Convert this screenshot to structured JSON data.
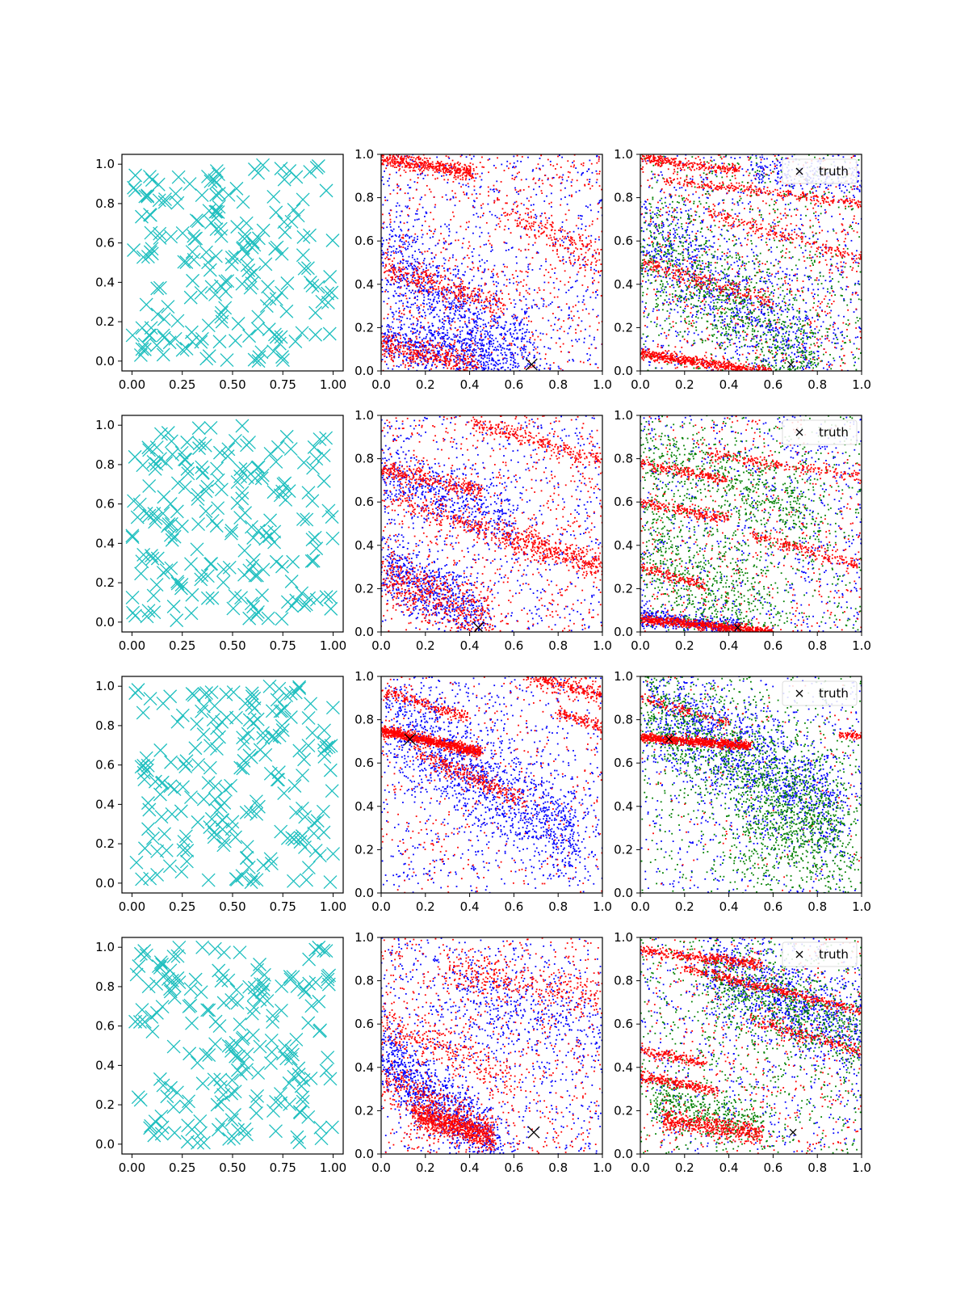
{
  "figure": {
    "rows": 4,
    "columns": 3
  },
  "colors": {
    "samples": "#1fbfbf",
    "blue": "#0000ff",
    "red": "#ff0000",
    "green": "#008000",
    "truth": "#000000"
  },
  "chart_data": [
    {
      "type": "scatter",
      "row": 1,
      "col": 1,
      "marker": "x",
      "color": "cyan",
      "seed": 11,
      "n": 200,
      "xlim": [
        -0.05,
        1.05
      ],
      "ylim": [
        -0.05,
        1.05
      ],
      "xticks": [
        "0.00",
        "0.25",
        "0.50",
        "0.75",
        "1.00"
      ],
      "yticks": [
        "0.0",
        "0.2",
        "0.4",
        "0.6",
        "0.8",
        "1.0"
      ],
      "title": "",
      "xlabel": "",
      "ylabel": ""
    },
    {
      "type": "scatter",
      "row": 1,
      "col": 2,
      "marker": "dot",
      "series_colors": [
        "blue",
        "red"
      ],
      "truth": [
        0.68,
        0.03
      ],
      "xlim": [
        0,
        1
      ],
      "ylim": [
        0,
        1
      ],
      "xticks": [
        "0.0",
        "0.2",
        "0.4",
        "0.6",
        "0.8",
        "1.0"
      ],
      "yticks": [
        "0.0",
        "0.2",
        "0.4",
        "0.6",
        "0.8",
        "1.0"
      ],
      "bands": [
        {
          "color": "red",
          "x0": 0.0,
          "y0": 0.98,
          "slope": -0.15,
          "len": 0.42,
          "w": 0.018,
          "n": 420
        },
        {
          "color": "red",
          "x0": 0.0,
          "y0": 0.48,
          "slope": -0.33,
          "len": 0.55,
          "w": 0.03,
          "n": 320
        },
        {
          "color": "red",
          "x0": 0.0,
          "y0": 0.12,
          "slope": -0.22,
          "len": 0.45,
          "w": 0.035,
          "n": 360
        },
        {
          "color": "red",
          "x0": 0.55,
          "y0": 0.75,
          "slope": -0.55,
          "len": 0.45,
          "w": 0.04,
          "n": 200
        },
        {
          "color": "blue",
          "x0": 0.0,
          "y0": 0.55,
          "slope": -0.8,
          "len": 0.7,
          "w": 0.12,
          "n": 900
        },
        {
          "color": "blue",
          "x0": 0.0,
          "y0": 0.15,
          "slope": -0.2,
          "len": 0.5,
          "w": 0.06,
          "n": 500
        }
      ],
      "background": [
        {
          "color": "blue",
          "n": 700
        },
        {
          "color": "red",
          "n": 700
        }
      ]
    },
    {
      "type": "scatter",
      "row": 1,
      "col": 3,
      "marker": "dot",
      "series_colors": [
        "blue",
        "green",
        "red"
      ],
      "truth": [
        0.68,
        0.03
      ],
      "legend": {
        "label": "truth",
        "position": "top-right"
      },
      "xlim": [
        0,
        1
      ],
      "ylim": [
        0,
        1
      ],
      "xticks": [
        "0.0",
        "0.2",
        "0.4",
        "0.6",
        "0.8",
        "1.0"
      ],
      "yticks": [
        "0.0",
        "0.2",
        "0.4",
        "0.6",
        "0.8",
        "1.0"
      ],
      "bands": [
        {
          "color": "red",
          "x0": 0.0,
          "y0": 0.08,
          "slope": -0.15,
          "len": 0.6,
          "w": 0.012,
          "n": 600
        },
        {
          "color": "red",
          "x0": 0.0,
          "y0": 0.98,
          "slope": -0.12,
          "len": 0.45,
          "w": 0.012,
          "n": 250
        },
        {
          "color": "red",
          "x0": 0.1,
          "y0": 0.88,
          "slope": -0.12,
          "len": 0.9,
          "w": 0.01,
          "n": 250
        },
        {
          "color": "red",
          "x0": 0.0,
          "y0": 0.5,
          "slope": -0.3,
          "len": 0.6,
          "w": 0.02,
          "n": 250
        },
        {
          "color": "red",
          "x0": 0.3,
          "y0": 0.73,
          "slope": -0.3,
          "len": 0.7,
          "w": 0.015,
          "n": 200
        },
        {
          "color": "blue",
          "x0": 0.0,
          "y0": 0.65,
          "slope": -0.75,
          "len": 0.8,
          "w": 0.12,
          "n": 700
        },
        {
          "color": "green",
          "x0": 0.0,
          "y0": 0.6,
          "slope": -0.7,
          "len": 0.8,
          "w": 0.14,
          "n": 800
        },
        {
          "color": "blue",
          "x0": 0.5,
          "y0": 0.93,
          "slope": -0.1,
          "len": 0.5,
          "w": 0.04,
          "n": 200
        }
      ],
      "background": [
        {
          "color": "blue",
          "n": 700
        },
        {
          "color": "red",
          "n": 700
        },
        {
          "color": "green",
          "n": 600
        }
      ]
    },
    {
      "type": "scatter",
      "row": 2,
      "col": 1,
      "marker": "x",
      "color": "cyan",
      "seed": 22,
      "n": 200,
      "xlim": [
        -0.05,
        1.05
      ],
      "ylim": [
        -0.05,
        1.05
      ],
      "xticks": [
        "0.00",
        "0.25",
        "0.50",
        "0.75",
        "1.00"
      ],
      "yticks": [
        "0.0",
        "0.2",
        "0.4",
        "0.6",
        "0.8",
        "1.0"
      ],
      "title": "",
      "xlabel": "",
      "ylabel": ""
    },
    {
      "type": "scatter",
      "row": 2,
      "col": 2,
      "marker": "dot",
      "series_colors": [
        "blue",
        "red"
      ],
      "truth": [
        0.44,
        0.02
      ],
      "xlim": [
        0,
        1
      ],
      "ylim": [
        0,
        1
      ],
      "xticks": [
        "0.0",
        "0.2",
        "0.4",
        "0.6",
        "0.8",
        "1.0"
      ],
      "yticks": [
        "0.0",
        "0.2",
        "0.4",
        "0.6",
        "0.8",
        "1.0"
      ],
      "bands": [
        {
          "color": "red",
          "x0": 0.0,
          "y0": 0.75,
          "slope": -0.22,
          "len": 0.45,
          "w": 0.02,
          "n": 300
        },
        {
          "color": "red",
          "x0": 0.05,
          "y0": 0.62,
          "slope": -0.35,
          "len": 0.95,
          "w": 0.03,
          "n": 400
        },
        {
          "color": "red",
          "x0": 0.0,
          "y0": 0.27,
          "slope": -0.45,
          "len": 0.5,
          "w": 0.07,
          "n": 500
        },
        {
          "color": "red",
          "x0": 0.4,
          "y0": 0.97,
          "slope": -0.3,
          "len": 0.6,
          "w": 0.02,
          "n": 250
        },
        {
          "color": "red",
          "x0": 0.55,
          "y0": 0.45,
          "slope": -0.3,
          "len": 0.45,
          "w": 0.03,
          "n": 200
        },
        {
          "color": "blue",
          "x0": 0.0,
          "y0": 0.3,
          "slope": -0.5,
          "len": 0.45,
          "w": 0.08,
          "n": 600
        },
        {
          "color": "blue",
          "x0": 0.0,
          "y0": 0.72,
          "slope": -0.35,
          "len": 0.6,
          "w": 0.08,
          "n": 500
        }
      ],
      "background": [
        {
          "color": "blue",
          "n": 600
        },
        {
          "color": "red",
          "n": 700
        }
      ]
    },
    {
      "type": "scatter",
      "row": 2,
      "col": 3,
      "marker": "dot",
      "series_colors": [
        "blue",
        "green",
        "red"
      ],
      "truth": [
        0.44,
        0.02
      ],
      "legend": {
        "label": "truth",
        "position": "top-right"
      },
      "xlim": [
        0,
        1
      ],
      "ylim": [
        0,
        1
      ],
      "xticks": [
        "0.0",
        "0.2",
        "0.4",
        "0.6",
        "0.8",
        "1.0"
      ],
      "yticks": [
        "0.0",
        "0.2",
        "0.4",
        "0.6",
        "0.8",
        "1.0"
      ],
      "bands": [
        {
          "color": "red",
          "x0": 0.0,
          "y0": 0.06,
          "slope": -0.1,
          "len": 0.6,
          "w": 0.01,
          "n": 700
        },
        {
          "color": "blue",
          "x0": 0.0,
          "y0": 0.07,
          "slope": -0.12,
          "len": 0.45,
          "w": 0.02,
          "n": 400
        },
        {
          "color": "red",
          "x0": 0.0,
          "y0": 0.78,
          "slope": -0.2,
          "len": 0.4,
          "w": 0.012,
          "n": 200
        },
        {
          "color": "red",
          "x0": 0.0,
          "y0": 0.6,
          "slope": -0.2,
          "len": 0.4,
          "w": 0.012,
          "n": 200
        },
        {
          "color": "red",
          "x0": 0.0,
          "y0": 0.3,
          "slope": -0.3,
          "len": 0.3,
          "w": 0.012,
          "n": 150
        },
        {
          "color": "red",
          "x0": 0.3,
          "y0": 0.82,
          "slope": -0.15,
          "len": 0.7,
          "w": 0.012,
          "n": 200
        },
        {
          "color": "red",
          "x0": 0.5,
          "y0": 0.45,
          "slope": -0.3,
          "len": 0.5,
          "w": 0.015,
          "n": 200
        },
        {
          "color": "green",
          "x0": 0.0,
          "y0": 0.4,
          "slope": -0.6,
          "len": 0.6,
          "w": 0.15,
          "n": 600
        },
        {
          "color": "green",
          "x0": 0.0,
          "y0": 0.85,
          "slope": -0.4,
          "len": 0.8,
          "w": 0.1,
          "n": 500
        }
      ],
      "background": [
        {
          "color": "blue",
          "n": 700
        },
        {
          "color": "red",
          "n": 500
        },
        {
          "color": "green",
          "n": 600
        }
      ]
    },
    {
      "type": "scatter",
      "row": 3,
      "col": 1,
      "marker": "x",
      "color": "cyan",
      "seed": 33,
      "n": 200,
      "xlim": [
        -0.05,
        1.05
      ],
      "ylim": [
        -0.05,
        1.05
      ],
      "xticks": [
        "0.00",
        "0.25",
        "0.50",
        "0.75",
        "1.00"
      ],
      "yticks": [
        "0.0",
        "0.2",
        "0.4",
        "0.6",
        "0.8",
        "1.0"
      ],
      "title": "",
      "xlabel": "",
      "ylabel": ""
    },
    {
      "type": "scatter",
      "row": 3,
      "col": 2,
      "marker": "dot",
      "series_colors": [
        "blue",
        "red"
      ],
      "truth": [
        0.13,
        0.71
      ],
      "xlim": [
        0,
        1
      ],
      "ylim": [
        0,
        1
      ],
      "xticks": [
        "0.0",
        "0.2",
        "0.4",
        "0.6",
        "0.8",
        "1.0"
      ],
      "yticks": [
        "0.0",
        "0.2",
        "0.4",
        "0.6",
        "0.8",
        "1.0"
      ],
      "bands": [
        {
          "color": "red",
          "x0": 0.0,
          "y0": 0.75,
          "slope": -0.22,
          "len": 0.45,
          "w": 0.012,
          "n": 900
        },
        {
          "color": "red",
          "x0": 0.0,
          "y0": 0.93,
          "slope": -0.3,
          "len": 0.4,
          "w": 0.015,
          "n": 200
        },
        {
          "color": "red",
          "x0": 0.15,
          "y0": 0.65,
          "slope": -0.45,
          "len": 0.5,
          "w": 0.025,
          "n": 300
        },
        {
          "color": "red",
          "x0": 0.65,
          "y0": 1.0,
          "slope": -0.25,
          "len": 0.35,
          "w": 0.02,
          "n": 250
        },
        {
          "color": "red",
          "x0": 0.8,
          "y0": 0.83,
          "slope": -0.3,
          "len": 0.2,
          "w": 0.015,
          "n": 120
        },
        {
          "color": "blue",
          "x0": 0.05,
          "y0": 0.78,
          "slope": -0.65,
          "len": 0.85,
          "w": 0.12,
          "n": 1200
        }
      ],
      "background": [
        {
          "color": "blue",
          "n": 700
        },
        {
          "color": "red",
          "n": 400
        }
      ]
    },
    {
      "type": "scatter",
      "row": 3,
      "col": 3,
      "marker": "dot",
      "series_colors": [
        "blue",
        "green",
        "red"
      ],
      "truth": [
        0.13,
        0.71
      ],
      "legend": {
        "label": "truth",
        "position": "top-right"
      },
      "xlim": [
        0,
        1
      ],
      "ylim": [
        0,
        1
      ],
      "xticks": [
        "0.0",
        "0.2",
        "0.4",
        "0.6",
        "0.8",
        "1.0"
      ],
      "yticks": [
        "0.0",
        "0.2",
        "0.4",
        "0.6",
        "0.8",
        "1.0"
      ],
      "bands": [
        {
          "color": "red",
          "x0": 0.0,
          "y0": 0.72,
          "slope": -0.08,
          "len": 0.5,
          "w": 0.01,
          "n": 800
        },
        {
          "color": "red",
          "x0": 0.9,
          "y0": 0.73,
          "slope": -0.05,
          "len": 0.1,
          "w": 0.008,
          "n": 60
        },
        {
          "color": "red",
          "x0": 0.0,
          "y0": 0.9,
          "slope": -0.3,
          "len": 0.4,
          "w": 0.012,
          "n": 120
        },
        {
          "color": "blue",
          "x0": 0.05,
          "y0": 0.85,
          "slope": -0.55,
          "len": 0.85,
          "w": 0.12,
          "n": 1100
        },
        {
          "color": "green",
          "x0": 0.05,
          "y0": 0.82,
          "slope": -0.55,
          "len": 0.85,
          "w": 0.13,
          "n": 1100
        },
        {
          "color": "green",
          "x0": 0.45,
          "y0": 0.3,
          "slope": -0.2,
          "len": 0.5,
          "w": 0.12,
          "n": 400
        }
      ],
      "background": [
        {
          "color": "blue",
          "n": 600
        },
        {
          "color": "green",
          "n": 600
        },
        {
          "color": "red",
          "n": 150
        }
      ]
    },
    {
      "type": "scatter",
      "row": 4,
      "col": 1,
      "marker": "x",
      "color": "cyan",
      "seed": 44,
      "n": 200,
      "xlim": [
        -0.05,
        1.05
      ],
      "ylim": [
        -0.05,
        1.05
      ],
      "xticks": [
        "0.00",
        "0.25",
        "0.50",
        "0.75",
        "1.00"
      ],
      "yticks": [
        "0.0",
        "0.2",
        "0.4",
        "0.6",
        "0.8",
        "1.0"
      ],
      "title": "",
      "xlabel": "",
      "ylabel": ""
    },
    {
      "type": "scatter",
      "row": 4,
      "col": 2,
      "marker": "dot",
      "series_colors": [
        "blue",
        "red"
      ],
      "truth": [
        0.69,
        0.1
      ],
      "xlim": [
        0,
        1
      ],
      "ylim": [
        0,
        1
      ],
      "xticks": [
        "0.0",
        "0.2",
        "0.4",
        "0.6",
        "0.8",
        "1.0"
      ],
      "yticks": [
        "0.0",
        "0.2",
        "0.4",
        "0.6",
        "0.8",
        "1.0"
      ],
      "bands": [
        {
          "color": "red",
          "x0": 0.15,
          "y0": 0.18,
          "slope": -0.3,
          "len": 0.35,
          "w": 0.03,
          "n": 700
        },
        {
          "color": "red",
          "x0": 0.0,
          "y0": 0.35,
          "slope": -0.5,
          "len": 0.5,
          "w": 0.05,
          "n": 350
        },
        {
          "color": "red",
          "x0": 0.3,
          "y0": 0.85,
          "slope": -0.2,
          "len": 0.7,
          "w": 0.05,
          "n": 300
        },
        {
          "color": "red",
          "x0": 0.0,
          "y0": 0.6,
          "slope": -0.4,
          "len": 0.6,
          "w": 0.05,
          "n": 250
        },
        {
          "color": "blue",
          "x0": 0.0,
          "y0": 0.45,
          "slope": -0.8,
          "len": 0.55,
          "w": 0.08,
          "n": 900
        },
        {
          "color": "blue",
          "x0": 0.3,
          "y0": 0.75,
          "slope": -0.3,
          "len": 0.7,
          "w": 0.1,
          "n": 300
        }
      ],
      "background": [
        {
          "color": "blue",
          "n": 800
        },
        {
          "color": "red",
          "n": 700
        }
      ]
    },
    {
      "type": "scatter",
      "row": 4,
      "col": 3,
      "marker": "dot",
      "series_colors": [
        "blue",
        "green",
        "red"
      ],
      "truth": [
        0.69,
        0.1
      ],
      "legend": {
        "label": "truth",
        "position": "top-right"
      },
      "xlim": [
        0,
        1
      ],
      "ylim": [
        0,
        1
      ],
      "xticks": [
        "0.0",
        "0.2",
        "0.4",
        "0.6",
        "0.8",
        "1.0"
      ],
      "yticks": [
        "0.0",
        "0.2",
        "0.4",
        "0.6",
        "0.8",
        "1.0"
      ],
      "bands": [
        {
          "color": "red",
          "x0": 0.0,
          "y0": 0.94,
          "slope": -0.12,
          "len": 0.55,
          "w": 0.012,
          "n": 350
        },
        {
          "color": "red",
          "x0": 0.2,
          "y0": 0.86,
          "slope": -0.25,
          "len": 0.8,
          "w": 0.012,
          "n": 400
        },
        {
          "color": "red",
          "x0": 0.0,
          "y0": 0.36,
          "slope": -0.2,
          "len": 0.35,
          "w": 0.012,
          "n": 250
        },
        {
          "color": "red",
          "x0": 0.0,
          "y0": 0.48,
          "slope": -0.2,
          "len": 0.3,
          "w": 0.012,
          "n": 150
        },
        {
          "color": "red",
          "x0": 0.1,
          "y0": 0.16,
          "slope": -0.15,
          "len": 0.45,
          "w": 0.025,
          "n": 500
        },
        {
          "color": "red",
          "x0": 0.5,
          "y0": 0.62,
          "slope": -0.3,
          "len": 0.5,
          "w": 0.015,
          "n": 200
        },
        {
          "color": "blue",
          "x0": 0.3,
          "y0": 0.85,
          "slope": -0.4,
          "len": 0.7,
          "w": 0.1,
          "n": 800
        },
        {
          "color": "green",
          "x0": 0.3,
          "y0": 0.82,
          "slope": -0.4,
          "len": 0.7,
          "w": 0.1,
          "n": 700
        },
        {
          "color": "green",
          "x0": 0.05,
          "y0": 0.25,
          "slope": -0.25,
          "len": 0.5,
          "w": 0.06,
          "n": 400
        }
      ],
      "background": [
        {
          "color": "blue",
          "n": 600
        },
        {
          "color": "red",
          "n": 500
        },
        {
          "color": "green",
          "n": 600
        }
      ]
    }
  ]
}
